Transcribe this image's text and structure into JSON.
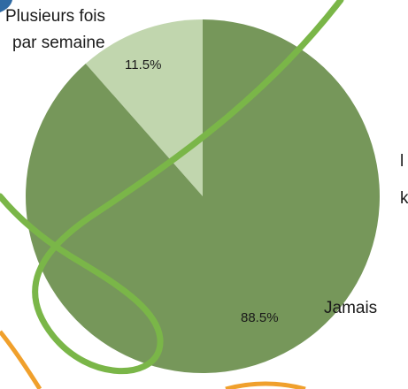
{
  "chart_data": {
    "type": "pie",
    "title": "",
    "categories": [
      "Plusieurs fois par semaine",
      "Jamais"
    ],
    "category_label_lines": [
      [
        "Plusieurs fois",
        "par semaine"
      ],
      [
        "Jamais"
      ]
    ],
    "values": [
      11.5,
      88.5
    ],
    "data_labels": [
      "11.5%",
      "88.5%"
    ],
    "colors": [
      "#c1d6ae",
      "#76975a"
    ],
    "start_angle_deg": 0,
    "direction": "counterclockwise",
    "legend": "none"
  },
  "edge_text_fragments": [
    "l",
    "k"
  ],
  "decor": {
    "swoosh_green": "#7ab648",
    "swoosh_orange": "#f0a02c",
    "corner_blue": "#2f6aa3"
  }
}
